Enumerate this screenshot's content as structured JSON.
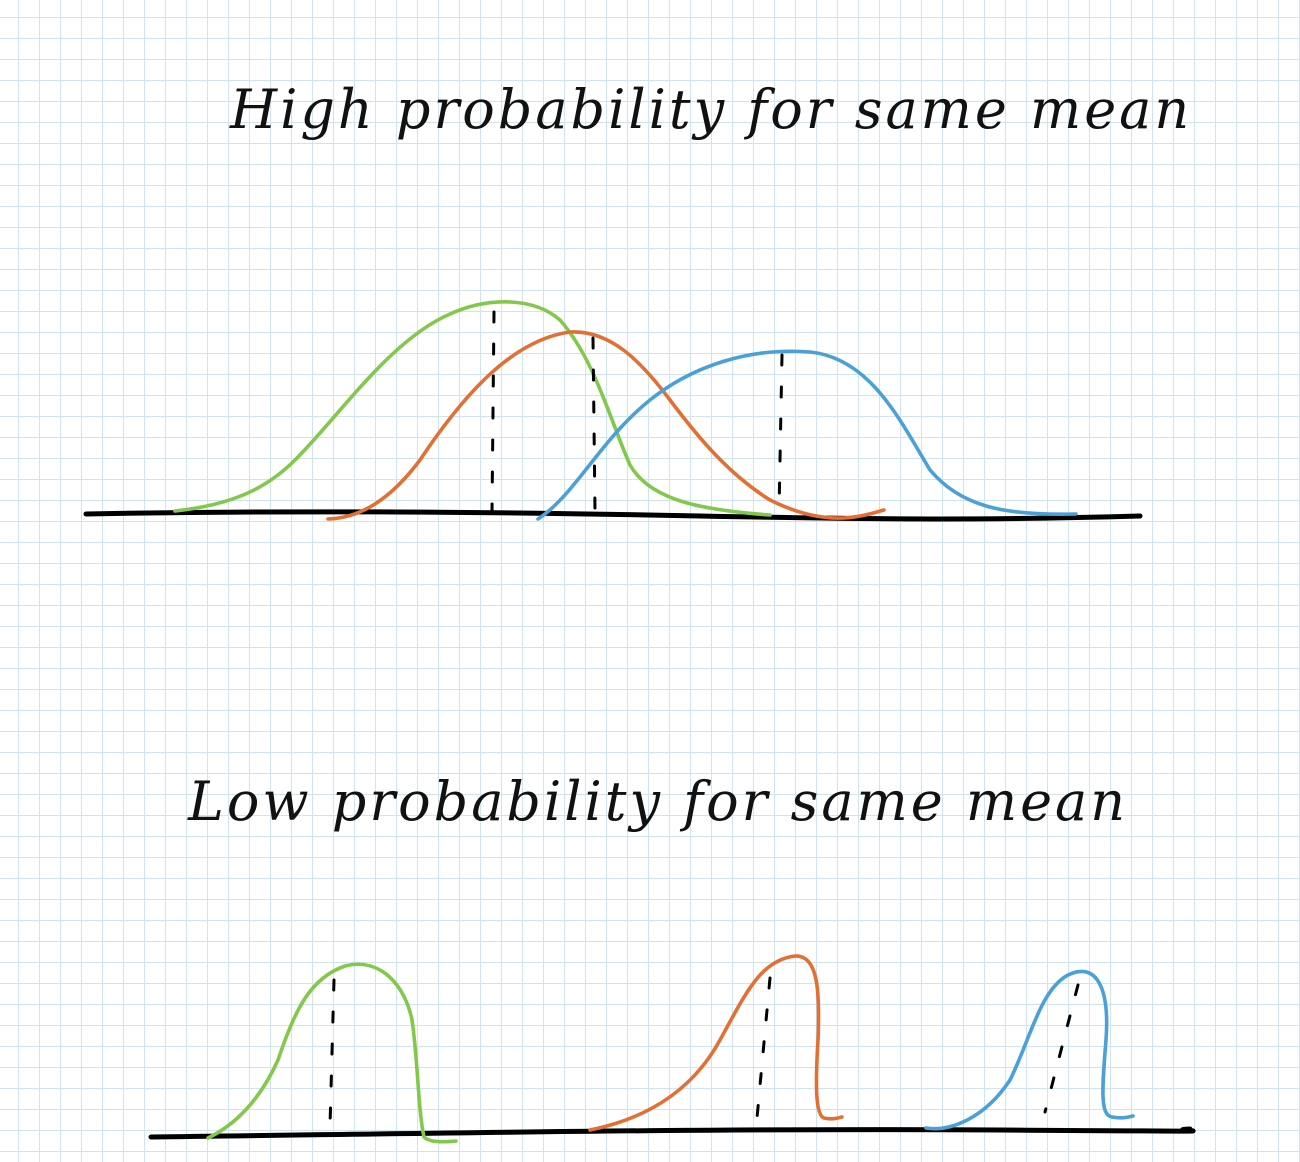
{
  "headings": {
    "high": "High probability for same mean",
    "low": "Low probability for same mean"
  },
  "colors": {
    "green": "#82c84a",
    "orange": "#e36f33",
    "blue": "#4aa0d8",
    "axis": "#000000",
    "grid": "#cfe3f2"
  }
}
